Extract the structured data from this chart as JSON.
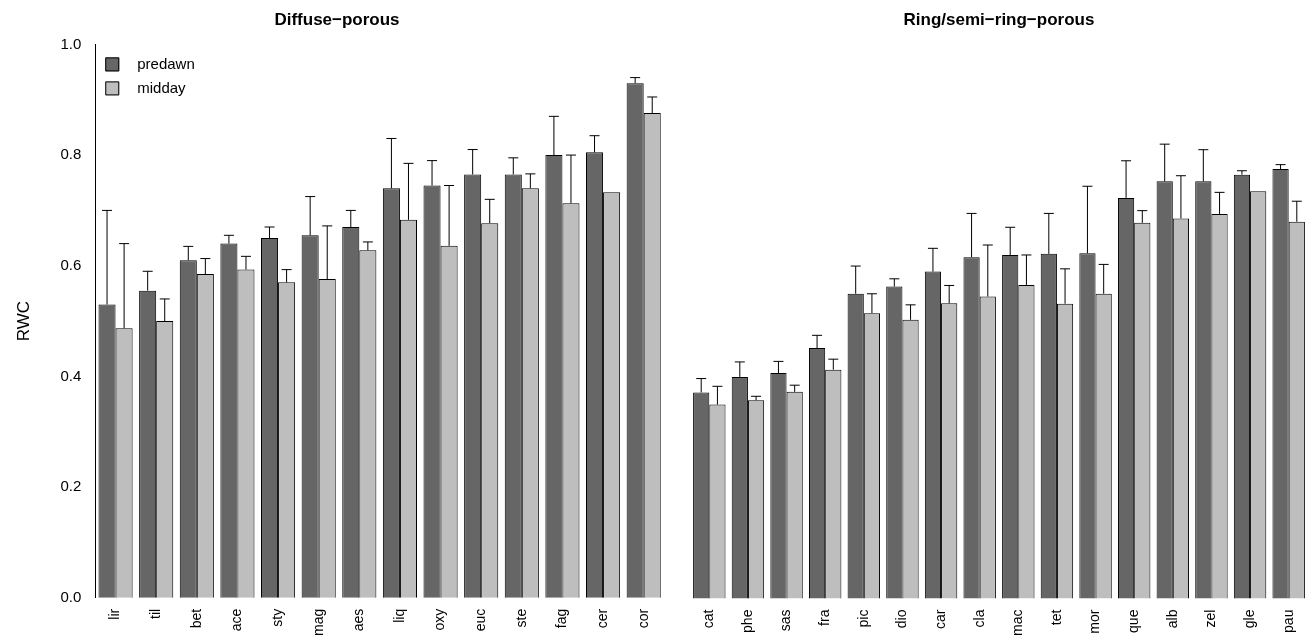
{
  "chart_data": [
    {
      "type": "bar",
      "title": "Diffuse−porous",
      "ylabel": "RWC",
      "categories": [
        "lir",
        "til",
        "bet",
        "ace",
        "sty",
        "mag",
        "aes",
        "liq",
        "oxy",
        "euc",
        "ste",
        "fag",
        "cer",
        "cor"
      ],
      "series": [
        {
          "name": "predawn",
          "color": "#666666",
          "values": [
            0.53,
            0.555,
            0.61,
            0.64,
            0.65,
            0.655,
            0.67,
            0.74,
            0.745,
            0.765,
            0.765,
            0.8,
            0.805,
            0.93
          ],
          "errors": [
            [
              0.53,
              0.7
            ],
            [
              0.555,
              0.59
            ],
            [
              0.61,
              0.635
            ],
            [
              0.64,
              0.655
            ],
            [
              0.65,
              0.67
            ],
            [
              0.655,
              0.725
            ],
            [
              0.67,
              0.7
            ],
            [
              0.74,
              0.83
            ],
            [
              0.745,
              0.79
            ],
            [
              0.765,
              0.81
            ],
            [
              0.765,
              0.795
            ],
            [
              0.8,
              0.87
            ],
            [
              0.805,
              0.835
            ],
            [
              0.93,
              0.94
            ]
          ]
        },
        {
          "name": "midday",
          "color": "#bebebe",
          "values": [
            0.487,
            0.5,
            0.585,
            0.593,
            0.57,
            0.576,
            0.628,
            0.683,
            0.636,
            0.677,
            0.74,
            0.713,
            0.733,
            0.876
          ],
          "errors": [
            [
              0.487,
              0.64
            ],
            [
              0.5,
              0.54
            ],
            [
              0.585,
              0.613
            ],
            [
              0.593,
              0.617
            ],
            [
              0.57,
              0.593
            ],
            [
              0.576,
              0.672
            ],
            [
              0.628,
              0.643
            ],
            [
              0.683,
              0.785
            ],
            [
              0.636,
              0.745
            ],
            [
              0.677,
              0.72
            ],
            [
              0.74,
              0.766
            ],
            [
              0.713,
              0.8
            ],
            null,
            [
              0.876,
              0.905
            ]
          ]
        }
      ],
      "ylim": [
        0,
        1
      ],
      "yticks": [
        {
          "value": 0,
          "label": "0.0"
        },
        0.2,
        0.4,
        0.6,
        0.8,
        {
          "value": 1,
          "label": "1.0"
        }
      ],
      "legend": "top left"
    },
    {
      "type": "bar",
      "title": "Ring/semi−ring−porous",
      "categories": [
        "cat",
        "phe",
        "sas",
        "fra",
        "pic",
        "dio",
        "car",
        "cla",
        "mac",
        "tet",
        "mor",
        "que",
        "alb",
        "zel",
        "gle",
        "pau"
      ],
      "series": [
        {
          "color": "#666666",
          "values": [
            0.372,
            0.4,
            0.407,
            0.452,
            0.55,
            0.563,
            0.59,
            0.616,
            0.62,
            0.622,
            0.623,
            0.723,
            0.753,
            0.753,
            0.765,
            0.775
          ],
          "errors": [
            [
              0.372,
              0.397
            ],
            [
              0.4,
              0.427
            ],
            [
              0.407,
              0.428
            ],
            [
              0.452,
              0.475
            ],
            [
              0.55,
              0.6
            ],
            [
              0.563,
              0.577
            ],
            [
              0.59,
              0.632
            ],
            [
              0.616,
              0.695
            ],
            [
              0.62,
              0.67
            ],
            [
              0.622,
              0.695
            ],
            [
              0.623,
              0.744
            ],
            [
              0.723,
              0.79
            ],
            [
              0.753,
              0.82
            ],
            [
              0.753,
              0.81
            ],
            [
              0.765,
              0.772
            ],
            [
              0.775,
              0.783
            ]
          ]
        },
        {
          "color": "#bebebe",
          "values": [
            0.35,
            0.358,
            0.373,
            0.413,
            0.515,
            0.503,
            0.533,
            0.545,
            0.566,
            0.532,
            0.55,
            0.678,
            0.686,
            0.694,
            0.735,
            0.68
          ],
          "errors": [
            [
              0.35,
              0.383
            ],
            [
              0.358,
              0.365
            ],
            [
              0.373,
              0.385
            ],
            [
              0.413,
              0.432
            ],
            [
              0.515,
              0.55
            ],
            [
              0.503,
              0.53
            ],
            [
              0.533,
              0.565
            ],
            [
              0.545,
              0.638
            ],
            [
              0.566,
              0.62
            ],
            [
              0.532,
              0.595
            ],
            [
              0.55,
              0.603
            ],
            [
              0.678,
              0.7
            ],
            [
              0.686,
              0.763
            ],
            [
              0.694,
              0.733
            ],
            null,
            [
              0.68,
              0.717
            ]
          ]
        }
      ],
      "ylim": [
        0,
        1
      ],
      "tick_labels": "x"
    }
  ]
}
